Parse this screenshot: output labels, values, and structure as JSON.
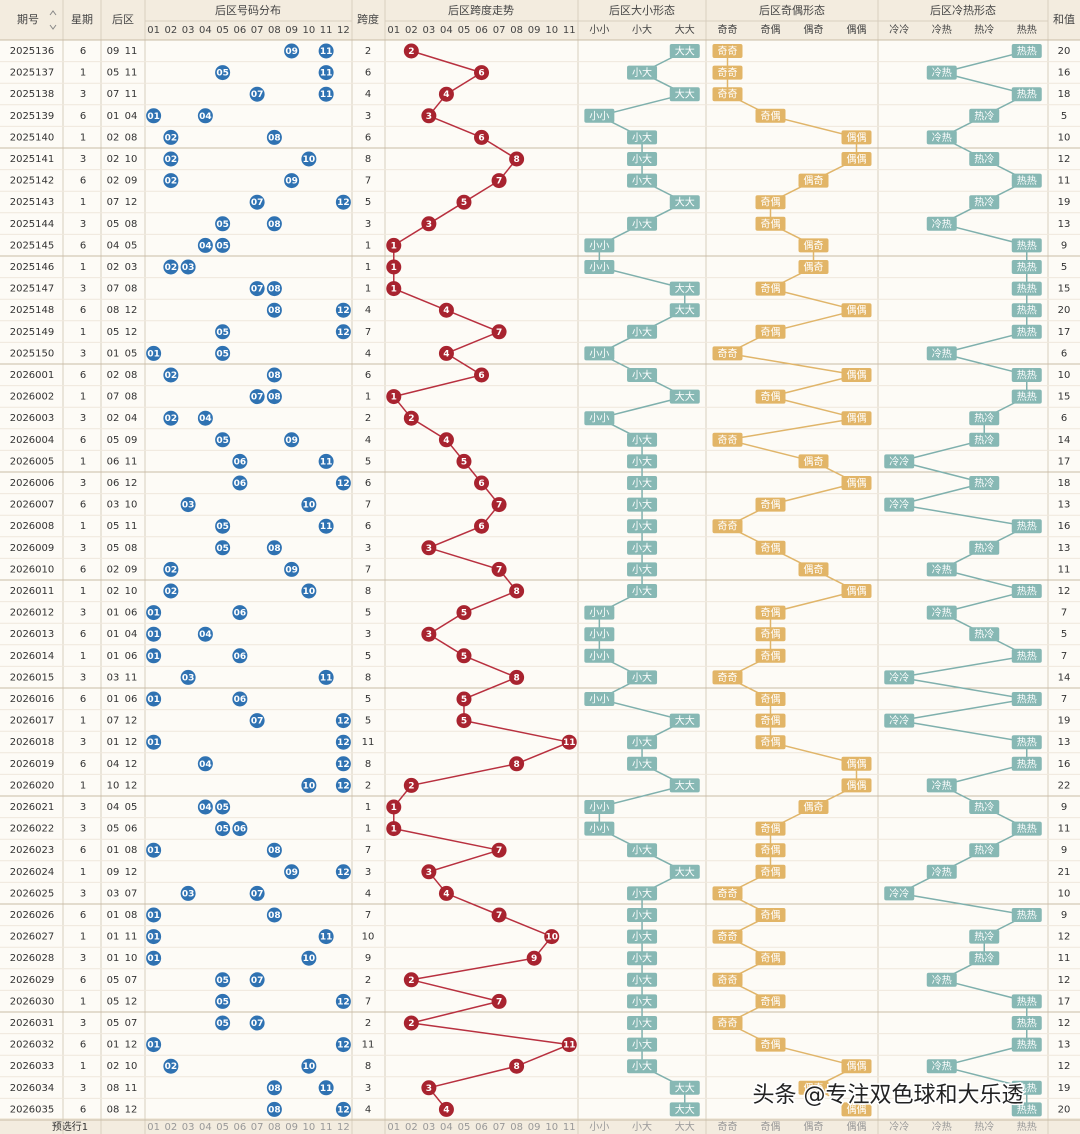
{
  "header": {
    "period": "期号",
    "weekday": "星期",
    "back": "后区",
    "ball_group": "后区号码分布",
    "span": "跨度",
    "span_group": "后区跨度走势",
    "size_group": "后区大小形态",
    "oe_group": "后区奇偶形态",
    "hc_group": "后区冷热形态",
    "sum": "和值",
    "balls": [
      "01",
      "02",
      "03",
      "04",
      "05",
      "06",
      "07",
      "08",
      "09",
      "10",
      "11",
      "12"
    ],
    "span_cols": [
      "01",
      "02",
      "03",
      "04",
      "05",
      "06",
      "07",
      "08",
      "09",
      "10",
      "11"
    ],
    "size": [
      "小小",
      "小大",
      "大大"
    ],
    "oe": [
      "奇奇",
      "奇偶",
      "偶奇",
      "偶偶"
    ],
    "hc": [
      "冷冷",
      "冷热",
      "热冷",
      "热热"
    ]
  },
  "rows": [
    {
      "period": "2025136",
      "weekday": "6",
      "back": [
        "09",
        "11"
      ],
      "span": 2,
      "sum": "20",
      "size": "大大",
      "oe": "奇奇",
      "hc": "热热"
    },
    {
      "period": "2025137",
      "weekday": "1",
      "back": [
        "05",
        "11"
      ],
      "span": 6,
      "sum": "16",
      "size": "小大",
      "oe": "奇奇",
      "hc": "冷热"
    },
    {
      "period": "2025138",
      "weekday": "3",
      "back": [
        "07",
        "11"
      ],
      "span": 4,
      "sum": "18",
      "size": "大大",
      "oe": "奇奇",
      "hc": "热热"
    },
    {
      "period": "2025139",
      "weekday": "6",
      "back": [
        "01",
        "04"
      ],
      "span": 3,
      "sum": "5",
      "size": "小小",
      "oe": "奇偶",
      "hc": "热冷"
    },
    {
      "period": "2025140",
      "weekday": "1",
      "back": [
        "02",
        "08"
      ],
      "span": 6,
      "sum": "10",
      "size": "小大",
      "oe": "偶偶",
      "hc": "冷热"
    },
    {
      "period": "2025141",
      "weekday": "3",
      "back": [
        "02",
        "10"
      ],
      "span": 8,
      "sum": "12",
      "size": "小大",
      "oe": "偶偶",
      "hc": "热冷"
    },
    {
      "period": "2025142",
      "weekday": "6",
      "back": [
        "02",
        "09"
      ],
      "span": 7,
      "sum": "11",
      "size": "小大",
      "oe": "偶奇",
      "hc": "热热"
    },
    {
      "period": "2025143",
      "weekday": "1",
      "back": [
        "07",
        "12"
      ],
      "span": 5,
      "sum": "19",
      "size": "大大",
      "oe": "奇偶",
      "hc": "热冷"
    },
    {
      "period": "2025144",
      "weekday": "3",
      "back": [
        "05",
        "08"
      ],
      "span": 3,
      "sum": "13",
      "size": "小大",
      "oe": "奇偶",
      "hc": "冷热"
    },
    {
      "period": "2025145",
      "weekday": "6",
      "back": [
        "04",
        "05"
      ],
      "span": 1,
      "sum": "9",
      "size": "小小",
      "oe": "偶奇",
      "hc": "热热"
    },
    {
      "period": "2025146",
      "weekday": "1",
      "back": [
        "02",
        "03"
      ],
      "span": 1,
      "sum": "5",
      "size": "小小",
      "oe": "偶奇",
      "hc": "热热"
    },
    {
      "period": "2025147",
      "weekday": "3",
      "back": [
        "07",
        "08"
      ],
      "span": 1,
      "sum": "15",
      "size": "大大",
      "oe": "奇偶",
      "hc": "热热"
    },
    {
      "period": "2025148",
      "weekday": "6",
      "back": [
        "08",
        "12"
      ],
      "span": 4,
      "sum": "20",
      "size": "大大",
      "oe": "偶偶",
      "hc": "热热"
    },
    {
      "period": "2025149",
      "weekday": "1",
      "back": [
        "05",
        "12"
      ],
      "span": 7,
      "sum": "17",
      "size": "小大",
      "oe": "奇偶",
      "hc": "热热"
    },
    {
      "period": "2025150",
      "weekday": "3",
      "back": [
        "01",
        "05"
      ],
      "span": 4,
      "sum": "6",
      "size": "小小",
      "oe": "奇奇",
      "hc": "冷热"
    },
    {
      "period": "2026001",
      "weekday": "6",
      "back": [
        "02",
        "08"
      ],
      "span": 6,
      "sum": "10",
      "size": "小大",
      "oe": "偶偶",
      "hc": "热热"
    },
    {
      "period": "2026002",
      "weekday": "1",
      "back": [
        "07",
        "08"
      ],
      "span": 1,
      "sum": "15",
      "size": "大大",
      "oe": "奇偶",
      "hc": "热热"
    },
    {
      "period": "2026003",
      "weekday": "3",
      "back": [
        "02",
        "04"
      ],
      "span": 2,
      "sum": "6",
      "size": "小小",
      "oe": "偶偶",
      "hc": "热冷"
    },
    {
      "period": "2026004",
      "weekday": "6",
      "back": [
        "05",
        "09"
      ],
      "span": 4,
      "sum": "14",
      "size": "小大",
      "oe": "奇奇",
      "hc": "热冷"
    },
    {
      "period": "2026005",
      "weekday": "1",
      "back": [
        "06",
        "11"
      ],
      "span": 5,
      "sum": "17",
      "size": "小大",
      "oe": "偶奇",
      "hc": "冷冷"
    },
    {
      "period": "2026006",
      "weekday": "3",
      "back": [
        "06",
        "12"
      ],
      "span": 6,
      "sum": "18",
      "size": "小大",
      "oe": "偶偶",
      "hc": "热冷"
    },
    {
      "period": "2026007",
      "weekday": "6",
      "back": [
        "03",
        "10"
      ],
      "span": 7,
      "sum": "13",
      "size": "小大",
      "oe": "奇偶",
      "hc": "冷冷"
    },
    {
      "period": "2026008",
      "weekday": "1",
      "back": [
        "05",
        "11"
      ],
      "span": 6,
      "sum": "16",
      "size": "小大",
      "oe": "奇奇",
      "hc": "热热"
    },
    {
      "period": "2026009",
      "weekday": "3",
      "back": [
        "05",
        "08"
      ],
      "span": 3,
      "sum": "13",
      "size": "小大",
      "oe": "奇偶",
      "hc": "热冷"
    },
    {
      "period": "2026010",
      "weekday": "6",
      "back": [
        "02",
        "09"
      ],
      "span": 7,
      "sum": "11",
      "size": "小大",
      "oe": "偶奇",
      "hc": "冷热"
    },
    {
      "period": "2026011",
      "weekday": "1",
      "back": [
        "02",
        "10"
      ],
      "span": 8,
      "sum": "12",
      "size": "小大",
      "oe": "偶偶",
      "hc": "热热"
    },
    {
      "period": "2026012",
      "weekday": "3",
      "back": [
        "01",
        "06"
      ],
      "span": 5,
      "sum": "7",
      "size": "小小",
      "oe": "奇偶",
      "hc": "冷热"
    },
    {
      "period": "2026013",
      "weekday": "6",
      "back": [
        "01",
        "04"
      ],
      "span": 3,
      "sum": "5",
      "size": "小小",
      "oe": "奇偶",
      "hc": "热冷"
    },
    {
      "period": "2026014",
      "weekday": "1",
      "back": [
        "01",
        "06"
      ],
      "span": 5,
      "sum": "7",
      "size": "小小",
      "oe": "奇偶",
      "hc": "热热"
    },
    {
      "period": "2026015",
      "weekday": "3",
      "back": [
        "03",
        "11"
      ],
      "span": 8,
      "sum": "14",
      "size": "小大",
      "oe": "奇奇",
      "hc": "冷冷"
    },
    {
      "period": "2026016",
      "weekday": "6",
      "back": [
        "01",
        "06"
      ],
      "span": 5,
      "sum": "7",
      "size": "小小",
      "oe": "奇偶",
      "hc": "热热"
    },
    {
      "period": "2026017",
      "weekday": "1",
      "back": [
        "07",
        "12"
      ],
      "span": 5,
      "sum": "19",
      "size": "大大",
      "oe": "奇偶",
      "hc": "冷冷"
    },
    {
      "period": "2026018",
      "weekday": "3",
      "back": [
        "01",
        "12"
      ],
      "span": 11,
      "sum": "13",
      "size": "小大",
      "oe": "奇偶",
      "hc": "热热"
    },
    {
      "period": "2026019",
      "weekday": "6",
      "back": [
        "04",
        "12"
      ],
      "span": 8,
      "sum": "16",
      "size": "小大",
      "oe": "偶偶",
      "hc": "热热"
    },
    {
      "period": "2026020",
      "weekday": "1",
      "back": [
        "10",
        "12"
      ],
      "span": 2,
      "sum": "22",
      "size": "大大",
      "oe": "偶偶",
      "hc": "冷热"
    },
    {
      "period": "2026021",
      "weekday": "3",
      "back": [
        "04",
        "05"
      ],
      "span": 1,
      "sum": "9",
      "size": "小小",
      "oe": "偶奇",
      "hc": "热冷"
    },
    {
      "period": "2026022",
      "weekday": "3",
      "back": [
        "05",
        "06"
      ],
      "span": 1,
      "sum": "11",
      "size": "小小",
      "oe": "奇偶",
      "hc": "热热"
    },
    {
      "period": "2026023",
      "weekday": "6",
      "back": [
        "01",
        "08"
      ],
      "span": 7,
      "sum": "9",
      "size": "小大",
      "oe": "奇偶",
      "hc": "热冷"
    },
    {
      "period": "2026024",
      "weekday": "1",
      "back": [
        "09",
        "12"
      ],
      "span": 3,
      "sum": "21",
      "size": "大大",
      "oe": "奇偶",
      "hc": "冷热"
    },
    {
      "period": "2026025",
      "weekday": "3",
      "back": [
        "03",
        "07"
      ],
      "span": 4,
      "sum": "10",
      "size": "小大",
      "oe": "奇奇",
      "hc": "冷冷"
    },
    {
      "period": "2026026",
      "weekday": "6",
      "back": [
        "01",
        "08"
      ],
      "span": 7,
      "sum": "9",
      "size": "小大",
      "oe": "奇偶",
      "hc": "热热"
    },
    {
      "period": "2026027",
      "weekday": "1",
      "back": [
        "01",
        "11"
      ],
      "span": 10,
      "sum": "12",
      "size": "小大",
      "oe": "奇奇",
      "hc": "热冷"
    },
    {
      "period": "2026028",
      "weekday": "3",
      "back": [
        "01",
        "10"
      ],
      "span": 9,
      "sum": "11",
      "size": "小大",
      "oe": "奇偶",
      "hc": "热冷"
    },
    {
      "period": "2026029",
      "weekday": "6",
      "back": [
        "05",
        "07"
      ],
      "span": 2,
      "sum": "12",
      "size": "小大",
      "oe": "奇奇",
      "hc": "冷热"
    },
    {
      "period": "2026030",
      "weekday": "1",
      "back": [
        "05",
        "12"
      ],
      "span": 7,
      "sum": "17",
      "size": "小大",
      "oe": "奇偶",
      "hc": "热热"
    },
    {
      "period": "2026031",
      "weekday": "3",
      "back": [
        "05",
        "07"
      ],
      "span": 2,
      "sum": "12",
      "size": "小大",
      "oe": "奇奇",
      "hc": "热热"
    },
    {
      "period": "2026032",
      "weekday": "6",
      "back": [
        "01",
        "12"
      ],
      "span": 11,
      "sum": "13",
      "size": "小大",
      "oe": "奇偶",
      "hc": "热热"
    },
    {
      "period": "2026033",
      "weekday": "1",
      "back": [
        "02",
        "10"
      ],
      "span": 8,
      "sum": "12",
      "size": "小大",
      "oe": "偶偶",
      "hc": "冷热"
    },
    {
      "period": "2026034",
      "weekday": "3",
      "back": [
        "08",
        "11"
      ],
      "span": 3,
      "sum": "19",
      "size": "大大",
      "oe": "偶奇",
      "hc": "热热"
    },
    {
      "period": "2026035",
      "weekday": "6",
      "back": [
        "08",
        "12"
      ],
      "span": 4,
      "sum": "20",
      "size": "大大",
      "oe": "偶偶",
      "hc": "热热"
    }
  ],
  "footer": {
    "label": "预选行1"
  },
  "watermark": "头条 @专注双色球和大乐透"
}
